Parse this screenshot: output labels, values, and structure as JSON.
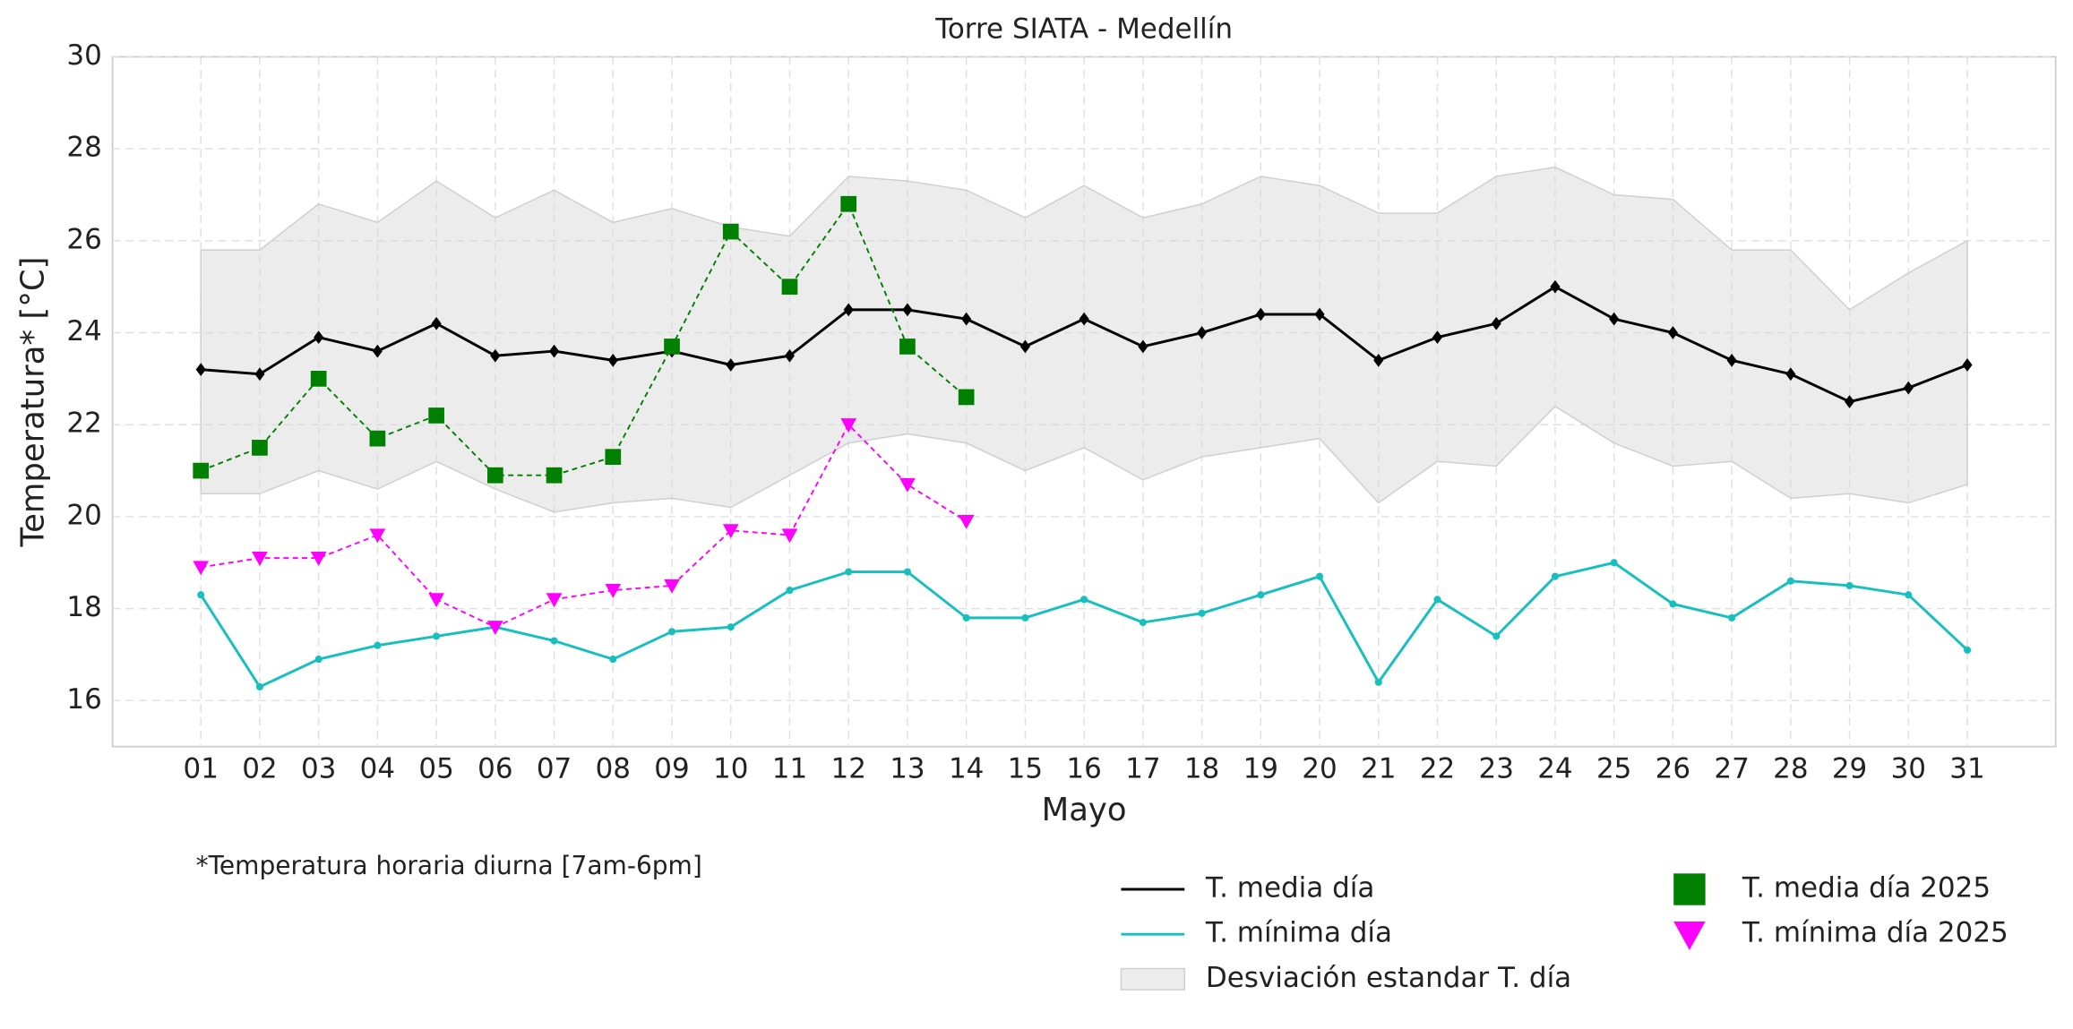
{
  "chart_data": {
    "type": "line",
    "title": "Torre SIATA - Medellín",
    "xlabel": "Mayo",
    "ylabel": "Temperatura* [°C]",
    "note": "*Temperatura horaria diurna [7am-6pm]",
    "categories": [
      "01",
      "02",
      "03",
      "04",
      "05",
      "06",
      "07",
      "08",
      "09",
      "10",
      "11",
      "12",
      "13",
      "14",
      "15",
      "16",
      "17",
      "18",
      "19",
      "20",
      "21",
      "22",
      "23",
      "24",
      "25",
      "26",
      "27",
      "28",
      "29",
      "30",
      "31"
    ],
    "ylim": [
      15,
      30
    ],
    "yticks": [
      16,
      18,
      20,
      22,
      24,
      26,
      28,
      30
    ],
    "grid": true,
    "band": {
      "name": "Desviación estandar T. día",
      "color": "#d9d9d9",
      "upper": [
        25.8,
        25.8,
        26.8,
        26.4,
        27.3,
        26.5,
        27.1,
        26.4,
        26.7,
        26.3,
        26.1,
        27.4,
        27.3,
        27.1,
        26.5,
        27.2,
        26.5,
        26.8,
        27.4,
        27.2,
        26.6,
        26.6,
        27.4,
        27.6,
        27.0,
        26.9,
        25.8,
        25.8,
        24.5,
        25.3,
        26.0
      ],
      "lower": [
        20.5,
        20.5,
        21.0,
        20.6,
        21.2,
        20.6,
        20.1,
        20.3,
        20.4,
        20.2,
        20.9,
        21.6,
        21.8,
        21.6,
        21.0,
        21.5,
        20.8,
        21.3,
        21.5,
        21.7,
        20.3,
        21.2,
        21.1,
        22.4,
        21.6,
        21.1,
        21.2,
        20.4,
        20.5,
        20.3,
        20.7
      ]
    },
    "series": [
      {
        "name": "T. media día",
        "color": "#000000",
        "marker": "diamond",
        "linestyle": "solid",
        "values": [
          23.2,
          23.1,
          23.9,
          23.6,
          24.2,
          23.5,
          23.6,
          23.4,
          23.6,
          23.3,
          23.5,
          24.5,
          24.5,
          24.3,
          23.7,
          24.3,
          23.7,
          24.0,
          24.4,
          24.4,
          23.4,
          23.9,
          24.2,
          25.0,
          24.3,
          24.0,
          23.4,
          23.1,
          22.5,
          22.8,
          23.3
        ]
      },
      {
        "name": "T. mínima día",
        "color": "#17bfbf",
        "marker": "circle",
        "linestyle": "solid",
        "values": [
          18.3,
          16.3,
          16.9,
          17.2,
          17.4,
          17.6,
          17.3,
          16.9,
          17.5,
          17.6,
          18.4,
          18.8,
          18.8,
          17.8,
          17.8,
          18.2,
          17.7,
          17.9,
          18.3,
          18.7,
          16.4,
          18.2,
          17.4,
          18.7,
          19.0,
          18.1,
          17.8,
          18.6,
          18.5,
          18.3,
          17.1
        ]
      },
      {
        "name": "T. media día 2025",
        "color": "#008000",
        "marker": "square",
        "linestyle": "dashed",
        "values": [
          21.0,
          21.5,
          23.0,
          21.7,
          22.2,
          20.9,
          20.9,
          21.3,
          23.7,
          26.2,
          25.0,
          26.8,
          23.7,
          22.6,
          null,
          null,
          null,
          null,
          null,
          null,
          null,
          null,
          null,
          null,
          null,
          null,
          null,
          null,
          null,
          null,
          null
        ]
      },
      {
        "name": "T. mínima día 2025",
        "color": "#ff00ff",
        "marker": "triangle-down",
        "linestyle": "dashed",
        "values": [
          18.9,
          19.1,
          19.1,
          19.6,
          18.2,
          17.6,
          18.2,
          18.4,
          18.5,
          19.7,
          19.6,
          22.0,
          20.7,
          19.9,
          null,
          null,
          null,
          null,
          null,
          null,
          null,
          null,
          null,
          null,
          null,
          null,
          null,
          null,
          null,
          null,
          null
        ]
      }
    ]
  }
}
